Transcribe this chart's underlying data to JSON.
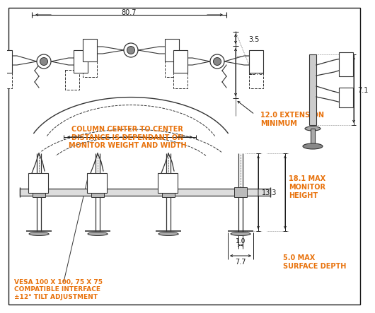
{
  "bg_color": "#ffffff",
  "line_color": "#1a1a1a",
  "dim_color": "#e8720c",
  "draw_color": "#333333",
  "dimensions": {
    "overall_width": "80.7",
    "dim_35": "3.5",
    "dim_156": "15.6",
    "ext_min": "12.0 EXTENSION\nMINIMUM",
    "col_center": "COLUMN CENTER TO CENTER\nDISTANCE IS DEPENDANT ON\nMONITOR WEIGHT AND WIDTH",
    "dim_71": "7.1",
    "dim_181": "18.1 MAX\nMONITOR\nHEIGHT",
    "dim_10": "1.0",
    "dim_133": "13.3",
    "dim_77": "7.7",
    "dim_50": "5.0 MAX\nSURFACE DEPTH",
    "vesa": "VESA 100 X 100, 75 X 75\nCOMPATIBLE INTERFACE\n±12° TILT ADJUSTMENT"
  }
}
